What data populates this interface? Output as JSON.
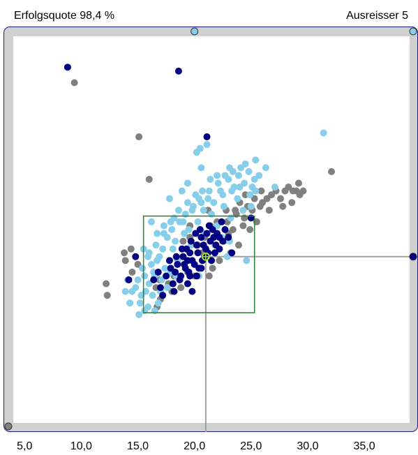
{
  "header": {
    "success_rate": "Erfolgsquote 98,4 %",
    "outliers": "Ausreisser 5"
  },
  "colors": {
    "frame_border": "#1a1a8c",
    "frame_fill": "#d0d0d0",
    "plot_bg": "#ffffff",
    "series_light": "#87ceeb",
    "series_dark": "#000080",
    "series_grey": "#808080",
    "box": "#2e7d32",
    "crosshair": "#a0a0a0",
    "center_marker": "#a0e020"
  },
  "chart_data": {
    "type": "scatter",
    "x_range": [
      4.0,
      39.0
    ],
    "x_ticks": [
      "5,0",
      "10,0",
      "15,0",
      "20,0",
      "25,0",
      "30,0",
      "35,0"
    ],
    "x_tick_values": [
      5,
      10,
      15,
      20,
      25,
      30,
      35
    ],
    "y_range": [
      0,
      100
    ],
    "target_box": {
      "x": [
        15.5,
        25.3
      ],
      "y": [
        28.5,
        53.5
      ]
    },
    "center_point": {
      "x": 21.0,
      "y": 43.0
    },
    "series": [
      {
        "color_key": "series_grey",
        "points": [
          [
            9.4,
            88
          ],
          [
            15.1,
            74
          ],
          [
            16.0,
            63
          ],
          [
            32.1,
            65
          ],
          [
            12.2,
            36
          ],
          [
            12.3,
            33
          ],
          [
            13.8,
            44
          ],
          [
            13.9,
            42
          ],
          [
            14.4,
            45
          ],
          [
            14.5,
            39
          ],
          [
            15.0,
            41
          ],
          [
            18.8,
            35
          ],
          [
            19.6,
            51
          ],
          [
            20.3,
            46
          ],
          [
            21.2,
            55
          ],
          [
            22.6,
            47
          ],
          [
            22.9,
            52
          ],
          [
            23.0,
            49
          ],
          [
            23.7,
            54
          ],
          [
            23.9,
            46
          ],
          [
            24.3,
            51
          ],
          [
            24.7,
            56
          ],
          [
            25.3,
            58
          ],
          [
            25.5,
            52
          ],
          [
            26.0,
            57
          ],
          [
            26.4,
            58
          ],
          [
            26.8,
            59
          ],
          [
            27.2,
            60
          ],
          [
            27.6,
            58
          ],
          [
            28.0,
            60
          ],
          [
            28.3,
            61
          ],
          [
            28.7,
            60
          ],
          [
            29.0,
            60
          ],
          [
            29.3,
            59
          ],
          [
            29.6,
            60
          ],
          [
            29.2,
            62
          ],
          [
            28.6,
            57
          ],
          [
            27.8,
            56
          ],
          [
            26.6,
            55
          ],
          [
            25.8,
            56
          ],
          [
            25.1,
            55
          ],
          [
            24.4,
            53
          ],
          [
            23.4,
            50
          ],
          [
            22.2,
            42
          ],
          [
            21.6,
            40
          ],
          [
            20.0,
            38
          ],
          [
            17.0,
            32
          ],
          [
            16.6,
            35
          ],
          [
            18.0,
            34
          ],
          [
            16.9,
            37
          ],
          [
            19.4,
            39
          ],
          [
            17.7,
            36
          ],
          [
            20.7,
            44
          ],
          [
            23.2,
            44
          ],
          [
            24.9,
            50
          ],
          [
            22.0,
            52
          ],
          [
            20.9,
            48
          ],
          [
            19.0,
            47
          ],
          [
            19.6,
            48
          ],
          [
            21.4,
            51
          ],
          [
            24.0,
            57
          ],
          [
            25.9,
            60
          ],
          [
            24.5,
            59
          ],
          [
            23.6,
            55
          ],
          [
            22.8,
            55
          ],
          [
            18.2,
            38
          ],
          [
            21.3,
            38
          ],
          [
            16.7,
            30
          ]
        ]
      },
      {
        "color_key": "series_light",
        "points": [
          [
            31.4,
            75
          ],
          [
            21.1,
            72
          ],
          [
            20.2,
            70
          ],
          [
            20.5,
            71
          ],
          [
            24.5,
            67
          ],
          [
            25.4,
            68
          ],
          [
            23.1,
            66
          ],
          [
            26.3,
            66
          ],
          [
            27.1,
            61
          ],
          [
            15.1,
            28
          ],
          [
            14.5,
            34
          ],
          [
            15.3,
            33
          ],
          [
            16.0,
            36
          ],
          [
            16.4,
            39
          ],
          [
            16.7,
            42
          ],
          [
            17.2,
            45
          ],
          [
            17.6,
            48
          ],
          [
            18.0,
            50
          ],
          [
            18.3,
            47
          ],
          [
            18.7,
            52
          ],
          [
            19.2,
            54
          ],
          [
            19.5,
            50
          ],
          [
            19.9,
            56
          ],
          [
            20.4,
            58
          ],
          [
            20.8,
            55
          ],
          [
            21.3,
            60
          ],
          [
            21.7,
            57
          ],
          [
            22.1,
            62
          ],
          [
            22.5,
            59
          ],
          [
            23.0,
            63
          ],
          [
            23.5,
            61
          ],
          [
            23.9,
            64
          ],
          [
            24.4,
            62
          ],
          [
            24.8,
            65
          ],
          [
            25.3,
            63
          ],
          [
            25.7,
            64
          ],
          [
            24.1,
            66
          ],
          [
            23.4,
            65
          ],
          [
            22.7,
            64
          ],
          [
            22.0,
            64
          ],
          [
            21.4,
            63
          ],
          [
            20.7,
            60
          ],
          [
            20.1,
            59
          ],
          [
            19.4,
            57
          ],
          [
            18.6,
            55
          ],
          [
            17.9,
            52
          ],
          [
            17.3,
            49
          ],
          [
            16.6,
            46
          ],
          [
            15.9,
            43
          ],
          [
            15.4,
            40
          ],
          [
            15.0,
            37
          ],
          [
            14.8,
            35
          ],
          [
            15.6,
            38
          ],
          [
            16.2,
            41
          ],
          [
            16.9,
            43
          ],
          [
            17.4,
            40
          ],
          [
            18.1,
            45
          ],
          [
            18.5,
            42
          ],
          [
            19.1,
            49
          ],
          [
            19.7,
            46
          ],
          [
            20.3,
            52
          ],
          [
            20.9,
            49
          ],
          [
            21.5,
            54
          ],
          [
            22.0,
            51
          ],
          [
            22.6,
            56
          ],
          [
            23.2,
            53
          ],
          [
            23.8,
            58
          ],
          [
            24.3,
            55
          ],
          [
            24.9,
            59
          ],
          [
            25.4,
            60
          ],
          [
            25.0,
            56
          ],
          [
            16.2,
            52
          ],
          [
            17.8,
            58
          ],
          [
            18.9,
            60
          ],
          [
            19.4,
            62
          ],
          [
            20.6,
            66
          ],
          [
            16.5,
            38
          ],
          [
            17.1,
            37
          ],
          [
            17.9,
            39
          ],
          [
            18.4,
            38
          ],
          [
            15.7,
            34
          ],
          [
            16.3,
            33
          ],
          [
            17.0,
            34
          ],
          [
            17.6,
            35
          ],
          [
            16.8,
            31
          ],
          [
            15.9,
            30
          ],
          [
            15.2,
            31
          ],
          [
            24.6,
            42
          ],
          [
            22.4,
            48
          ],
          [
            23.1,
            47
          ],
          [
            21.8,
            46
          ],
          [
            22.9,
            43
          ],
          [
            20.4,
            38
          ],
          [
            16.0,
            44
          ],
          [
            15.5,
            45
          ],
          [
            16.7,
            49
          ],
          [
            17.3,
            51
          ],
          [
            18.2,
            53
          ],
          [
            19.0,
            52
          ],
          [
            19.8,
            55
          ],
          [
            20.6,
            57
          ],
          [
            21.2,
            58
          ],
          [
            22.3,
            60
          ],
          [
            23.3,
            60
          ],
          [
            24.0,
            61
          ],
          [
            25.1,
            61
          ],
          [
            14.1,
            37
          ],
          [
            13.9,
            34
          ],
          [
            14.3,
            31
          ],
          [
            15.6,
            29
          ],
          [
            16.5,
            29
          ]
        ]
      },
      {
        "color_key": "series_dark",
        "points": [
          [
            8.8,
            92
          ],
          [
            18.6,
            91
          ],
          [
            21.1,
            74
          ],
          [
            25.0,
            53
          ],
          [
            14.8,
            43
          ],
          [
            14.2,
            37
          ],
          [
            16.4,
            37
          ],
          [
            17.2,
            33
          ],
          [
            21.7,
            48
          ],
          [
            23.3,
            44
          ],
          [
            20.6,
            40
          ],
          [
            19.8,
            34
          ],
          [
            22.2,
            45
          ],
          [
            19.6,
            38
          ],
          [
            21.5,
            42
          ],
          [
            20.2,
            38
          ],
          [
            18.3,
            39
          ],
          [
            19.0,
            43
          ],
          [
            19.3,
            45
          ],
          [
            19.7,
            47
          ],
          [
            20.1,
            49
          ],
          [
            20.5,
            50
          ],
          [
            20.8,
            46
          ],
          [
            21.3,
            51
          ],
          [
            21.6,
            50
          ],
          [
            22.0,
            49
          ],
          [
            22.4,
            52
          ],
          [
            18.7,
            37
          ],
          [
            19.2,
            40
          ],
          [
            19.8,
            42
          ],
          [
            20.3,
            44
          ],
          [
            20.7,
            42
          ],
          [
            21.0,
            45
          ],
          [
            21.4,
            47
          ],
          [
            21.9,
            46
          ],
          [
            22.2,
            48
          ],
          [
            17.9,
            40
          ],
          [
            18.5,
            41
          ],
          [
            19.4,
            42
          ],
          [
            20.0,
            41
          ],
          [
            20.9,
            43
          ],
          [
            21.2,
            44
          ],
          [
            18.1,
            36
          ],
          [
            18.8,
            38
          ],
          [
            19.5,
            39
          ],
          [
            20.4,
            40
          ],
          [
            18.9,
            45
          ],
          [
            19.6,
            44
          ],
          [
            20.2,
            46
          ],
          [
            21.8,
            44
          ],
          [
            22.5,
            47
          ],
          [
            23.0,
            48
          ],
          [
            17.5,
            38
          ],
          [
            18.4,
            43
          ],
          [
            19.1,
            41
          ],
          [
            20.6,
            48
          ],
          [
            21.1,
            49
          ],
          [
            22.7,
            50
          ],
          [
            17.8,
            42
          ],
          [
            16.8,
            39
          ],
          [
            17.0,
            35
          ],
          [
            18.2,
            34
          ],
          [
            19.4,
            36
          ]
        ]
      }
    ],
    "edge_markers": {
      "top": {
        "x": 20.0,
        "color_key": "series_light"
      },
      "top_right": {
        "color_key": "series_light"
      },
      "right": {
        "y": 43.0,
        "color_key": "series_dark"
      },
      "bottom_left": {
        "color_key": "series_grey"
      }
    }
  }
}
